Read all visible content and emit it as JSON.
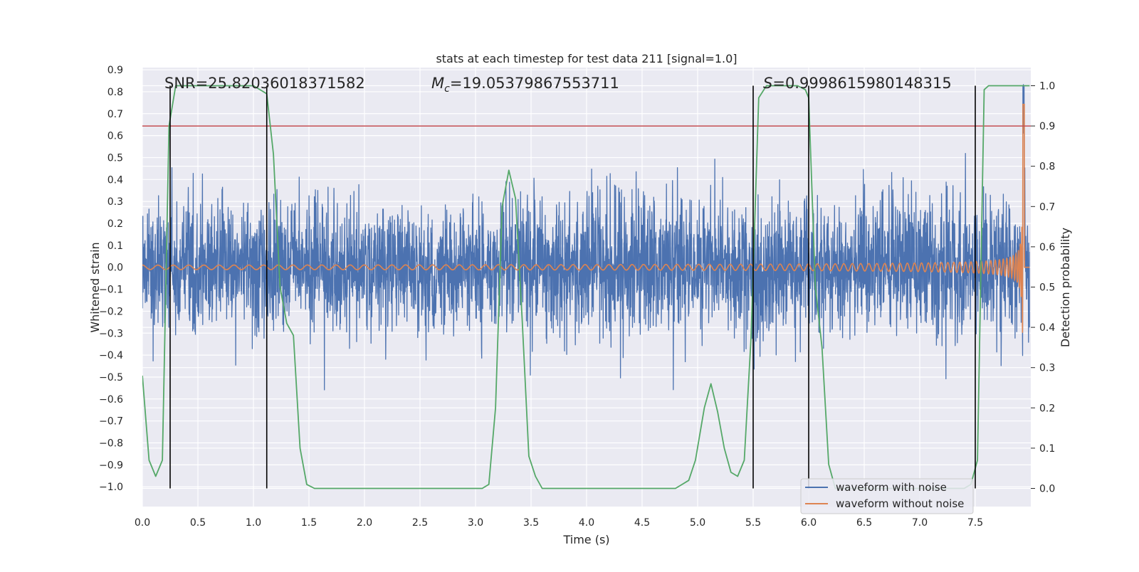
{
  "chart_data": {
    "type": "line",
    "title": "stats at each timestep for test data 211 [signal=1.0]",
    "xlabel": "Time (s)",
    "ylabel": "Whitened strain",
    "y2label": "Detection probability",
    "xlim": [
      0.0,
      8.0
    ],
    "ylim": [
      -1.09,
      0.91
    ],
    "y2lim": [
      -0.045,
      1.045
    ],
    "x_ticks": [
      0.0,
      0.5,
      1.0,
      1.5,
      2.0,
      2.5,
      3.0,
      3.5,
      4.0,
      4.5,
      5.0,
      5.5,
      6.0,
      6.5,
      7.0,
      7.5
    ],
    "x_tick_labels": [
      "0.0",
      "0.5",
      "1.0",
      "1.5",
      "2.0",
      "2.5",
      "3.0",
      "3.5",
      "4.0",
      "4.5",
      "5.0",
      "5.5",
      "6.0",
      "6.5",
      "7.0",
      "7.5"
    ],
    "y_ticks": [
      0.9,
      0.8,
      0.7,
      0.6,
      0.5,
      0.4,
      0.3,
      0.2,
      0.1,
      0.0,
      -0.1,
      -0.2,
      -0.3,
      -0.4,
      -0.5,
      -0.6,
      -0.7,
      -0.8,
      -0.9,
      -1.0
    ],
    "y_tick_labels": [
      "0.9",
      "0.8",
      "0.7",
      "0.6",
      "0.5",
      "0.4",
      "0.3",
      "0.2",
      "0.1",
      "0.0",
      "−0.1",
      "−0.2",
      "−0.3",
      "−0.4",
      "−0.5",
      "−0.6",
      "−0.7",
      "−0.8",
      "−0.9",
      "−1.0"
    ],
    "y2_ticks": [
      1.0,
      0.9,
      0.8,
      0.7,
      0.6,
      0.5,
      0.4,
      0.3,
      0.2,
      0.1,
      0.0
    ],
    "y2_tick_labels": [
      "1.0",
      "0.9",
      "0.8",
      "0.7",
      "0.6",
      "0.5",
      "0.4",
      "0.3",
      "0.2",
      "0.1",
      "0.0"
    ],
    "grid": true,
    "legend_position": "bottom-right",
    "colors": {
      "background": "#eaeaf2",
      "grid": "#ffffff",
      "noisy": "#4c72b0",
      "clean": "#dd8452",
      "probability": "#55a868",
      "threshold": "#c44e52",
      "markers": "#000000"
    },
    "annotations": {
      "snr": "SNR=25.82036018371582",
      "mc_symbol": "M",
      "mc_subscript": "c",
      "mc_value": "=19.05379867553711",
      "s_symbol": "S",
      "s_value": "=0.9998615980148315"
    },
    "threshold": 0.9,
    "vertical_markers": [
      0.25,
      1.12,
      5.5,
      6.0,
      7.5
    ],
    "series": [
      {
        "name": "waveform with noise",
        "kind": "noise",
        "amplitude_std": 0.15,
        "x_end": 7.99
      },
      {
        "name": "waveform without noise",
        "kind": "chirp",
        "merger_time": 7.93,
        "peak": 0.78,
        "x_end": 7.99
      },
      {
        "name": "",
        "axis": "right",
        "x": [
          0.0,
          0.06,
          0.12,
          0.18,
          0.24,
          0.3,
          0.36,
          0.42,
          0.5,
          0.6,
          0.7,
          0.8,
          0.9,
          1.0,
          1.06,
          1.12,
          1.18,
          1.24,
          1.3,
          1.36,
          1.42,
          1.48,
          1.55,
          1.62,
          1.7,
          2.0,
          2.5,
          3.0,
          3.06,
          3.12,
          3.18,
          3.24,
          3.3,
          3.36,
          3.42,
          3.48,
          3.54,
          3.6,
          3.68,
          3.8,
          4.0,
          4.5,
          4.72,
          4.8,
          4.86,
          4.92,
          4.98,
          5.06,
          5.12,
          5.18,
          5.24,
          5.3,
          5.36,
          5.42,
          5.48,
          5.55,
          5.62,
          5.7,
          5.8,
          5.9,
          5.97,
          6.0,
          6.06,
          6.12,
          6.18,
          6.24,
          6.3,
          6.4,
          6.6,
          7.0,
          7.3,
          7.4,
          7.46,
          7.52,
          7.58,
          7.62,
          7.7,
          7.8,
          7.99
        ],
        "y": [
          0.28,
          0.07,
          0.03,
          0.07,
          0.9,
          1.0,
          1.0,
          1.0,
          1.0,
          1.0,
          1.0,
          1.0,
          1.0,
          1.0,
          0.99,
          0.98,
          0.83,
          0.5,
          0.41,
          0.38,
          0.1,
          0.01,
          0.0,
          0.0,
          0.0,
          0.0,
          0.0,
          0.0,
          0.0,
          0.01,
          0.2,
          0.7,
          0.79,
          0.72,
          0.42,
          0.08,
          0.03,
          0.0,
          0.0,
          0.0,
          0.0,
          0.0,
          0.0,
          0.0,
          0.01,
          0.02,
          0.07,
          0.2,
          0.26,
          0.19,
          0.1,
          0.04,
          0.03,
          0.07,
          0.37,
          0.97,
          1.0,
          1.0,
          1.0,
          1.0,
          0.99,
          0.97,
          0.5,
          0.35,
          0.06,
          0.0,
          0.0,
          0.0,
          0.0,
          0.0,
          0.0,
          0.0,
          0.01,
          0.07,
          0.99,
          1.0,
          1.0,
          1.0,
          1.0
        ]
      }
    ]
  }
}
